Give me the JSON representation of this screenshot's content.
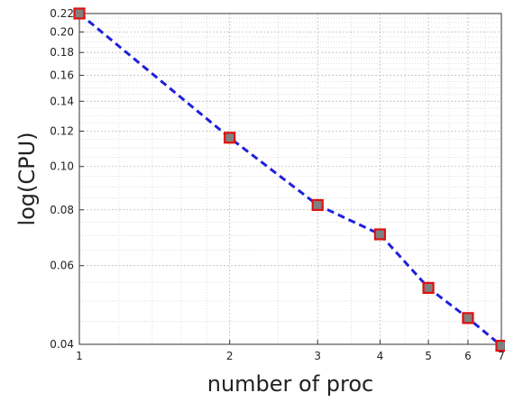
{
  "chart_data": {
    "type": "line",
    "title": "",
    "xlabel": "number of proc",
    "ylabel": "log(CPU)",
    "xscale": "log",
    "yscale": "log",
    "xlim": [
      1,
      7
    ],
    "ylim": [
      0.04,
      0.22
    ],
    "grid": true,
    "x_ticks": [
      1,
      2,
      3,
      4,
      5,
      6,
      7
    ],
    "x_tick_labels": [
      "1",
      "2",
      "3",
      "4",
      "5",
      "6",
      "7"
    ],
    "y_ticks": [
      0.04,
      0.06,
      0.08,
      0.1,
      0.12,
      0.14,
      0.16,
      0.18,
      0.2,
      0.22
    ],
    "y_tick_labels": [
      "0.04",
      "0.06",
      "0.08",
      "0.10",
      "0.12",
      "0.14",
      "0.16",
      "0.18",
      "0.20",
      "0.22"
    ],
    "series": [
      {
        "x": [
          1,
          2,
          3,
          4,
          5,
          6,
          7
        ],
        "y": [
          0.22,
          0.116,
          0.082,
          0.0705,
          0.0535,
          0.0458,
          0.0397
        ],
        "line_color": "#1f1fdc",
        "line_style": "dashed",
        "marker": "square",
        "marker_fill": "#808080",
        "marker_edge": "#e01010"
      }
    ]
  }
}
